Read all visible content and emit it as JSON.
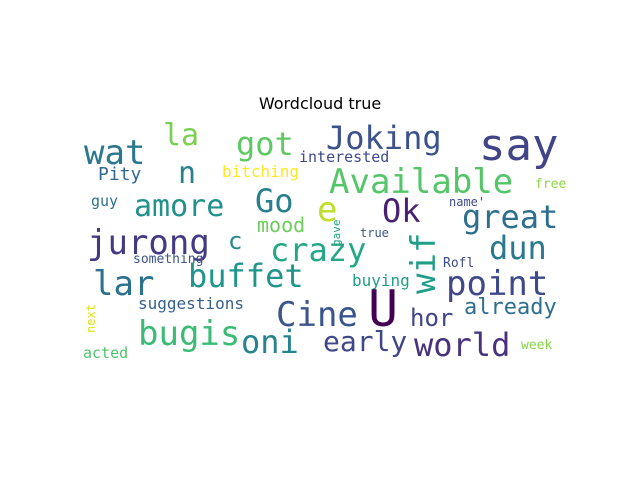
{
  "chart_data": {
    "type": "wordcloud",
    "title": "Wordcloud true",
    "words": [
      {
        "text": "say",
        "color": "#414487"
      },
      {
        "text": "Joking",
        "color": "#3b528b"
      },
      {
        "text": "got",
        "color": "#5ec962"
      },
      {
        "text": "la",
        "color": "#7ad151"
      },
      {
        "text": "wat",
        "color": "#2a788e"
      },
      {
        "text": "n",
        "color": "#26828e"
      },
      {
        "text": "interested",
        "color": "#3e4a89"
      },
      {
        "text": "Available",
        "color": "#54c568"
      },
      {
        "text": "Pity",
        "color": "#31688e"
      },
      {
        "text": "bitching",
        "color": "#fde725"
      },
      {
        "text": "free",
        "color": "#8fd744"
      },
      {
        "text": "Go",
        "color": "#277f8e"
      },
      {
        "text": "amore",
        "color": "#21918c"
      },
      {
        "text": "guy",
        "color": "#2c718e"
      },
      {
        "text": "e",
        "color": "#bddf26"
      },
      {
        "text": "Ok",
        "color": "#482173"
      },
      {
        "text": "name'",
        "color": "#3e4c8a"
      },
      {
        "text": "great",
        "color": "#2d708e"
      },
      {
        "text": "mood",
        "color": "#6ccd5a"
      },
      {
        "text": "gave",
        "color": "#21a685"
      },
      {
        "text": "jurong",
        "color": "#443a83"
      },
      {
        "text": "c",
        "color": "#23898e"
      },
      {
        "text": "crazy",
        "color": "#22a884"
      },
      {
        "text": "wif",
        "color": "#1f9e89"
      },
      {
        "text": "true",
        "color": "#39568c"
      },
      {
        "text": "dun",
        "color": "#2a788e"
      },
      {
        "text": "something",
        "color": "#3b528b"
      },
      {
        "text": "Rofl",
        "color": "#3e4a89"
      },
      {
        "text": "lar",
        "color": "#2c728e"
      },
      {
        "text": "buffet",
        "color": "#1f958b"
      },
      {
        "text": "buying",
        "color": "#1fa088"
      },
      {
        "text": "point",
        "color": "#3e4989"
      },
      {
        "text": "next",
        "color": "#dde318"
      },
      {
        "text": "suggestions",
        "color": "#35608d"
      },
      {
        "text": "Cine",
        "color": "#3a548c"
      },
      {
        "text": "U",
        "color": "#440154"
      },
      {
        "text": "hor",
        "color": "#414487"
      },
      {
        "text": "already",
        "color": "#2e6e8e"
      },
      {
        "text": "bugis",
        "color": "#3bbb75"
      },
      {
        "text": "oni",
        "color": "#25848e"
      },
      {
        "text": "early",
        "color": "#3f4788"
      },
      {
        "text": "world",
        "color": "#46327e"
      },
      {
        "text": "week",
        "color": "#86d549"
      },
      {
        "text": "acted",
        "color": "#4ec36b"
      }
    ]
  }
}
